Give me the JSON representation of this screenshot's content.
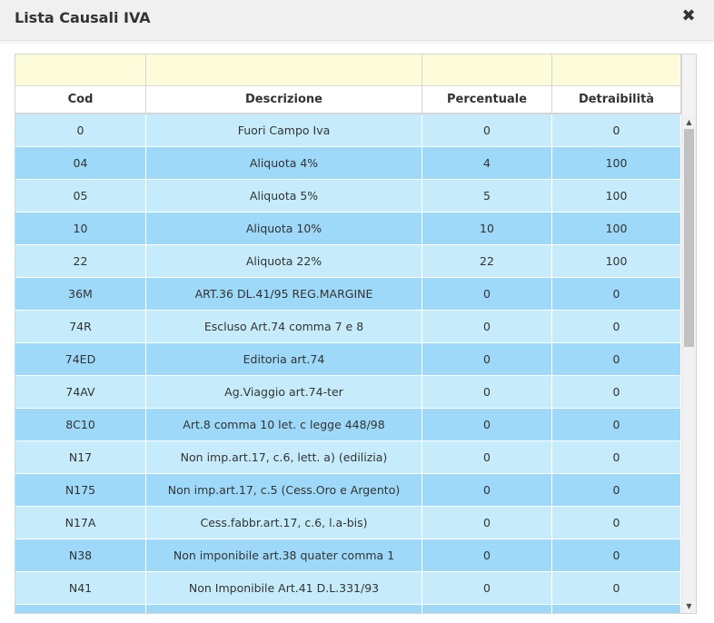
{
  "dialog": {
    "title": "Lista Causali IVA",
    "close_label": "✖"
  },
  "table": {
    "columns": [
      "Cod",
      "Descrizione",
      "Percentuale",
      "Detraibilità"
    ],
    "rows": [
      {
        "cod": "0",
        "descrizione": "Fuori Campo Iva",
        "percentuale": "0",
        "detraibilita": "0"
      },
      {
        "cod": "04",
        "descrizione": "Aliquota 4%",
        "percentuale": "4",
        "detraibilita": "100"
      },
      {
        "cod": "05",
        "descrizione": "Aliquota 5%",
        "percentuale": "5",
        "detraibilita": "100"
      },
      {
        "cod": "10",
        "descrizione": "Aliquota 10%",
        "percentuale": "10",
        "detraibilita": "100"
      },
      {
        "cod": "22",
        "descrizione": "Aliquota 22%",
        "percentuale": "22",
        "detraibilita": "100"
      },
      {
        "cod": "36M",
        "descrizione": "ART.36 DL.41/95 REG.MARGINE",
        "percentuale": "0",
        "detraibilita": "0"
      },
      {
        "cod": "74R",
        "descrizione": "Escluso Art.74 comma 7 e 8",
        "percentuale": "0",
        "detraibilita": "0"
      },
      {
        "cod": "74ED",
        "descrizione": "Editoria art.74",
        "percentuale": "0",
        "detraibilita": "0"
      },
      {
        "cod": "74AV",
        "descrizione": "Ag.Viaggio art.74-ter",
        "percentuale": "0",
        "detraibilita": "0"
      },
      {
        "cod": "8C10",
        "descrizione": "Art.8 comma 10 let. c legge 448/98",
        "percentuale": "0",
        "detraibilita": "0"
      },
      {
        "cod": "N17",
        "descrizione": "Non imp.art.17, c.6, lett. a) (edilizia)",
        "percentuale": "0",
        "detraibilita": "0"
      },
      {
        "cod": "N175",
        "descrizione": "Non imp.art.17, c.5 (Cess.Oro e Argento)",
        "percentuale": "0",
        "detraibilita": "0"
      },
      {
        "cod": "N17A",
        "descrizione": "Cess.fabbr.art.17, c.6, l.a-bis)",
        "percentuale": "0",
        "detraibilita": "0"
      },
      {
        "cod": "N38",
        "descrizione": "Non imponibile art.38 quater comma 1",
        "percentuale": "0",
        "detraibilita": "0"
      },
      {
        "cod": "N41",
        "descrizione": "Non Imponibile Art.41 D.L.331/93",
        "percentuale": "0",
        "detraibilita": "0"
      },
      {
        "cod": "",
        "descrizione": "",
        "percentuale": "",
        "detraibilita": ""
      }
    ]
  },
  "colors": {
    "row_light": "#c6ecfb",
    "row_dark": "#9ed9f9",
    "filter_bg": "#fcfcdb",
    "title_bar": "#f0f0f0"
  },
  "scrollbar": {
    "up_icon": "triangle-up-icon",
    "down_icon": "triangle-down-icon"
  }
}
